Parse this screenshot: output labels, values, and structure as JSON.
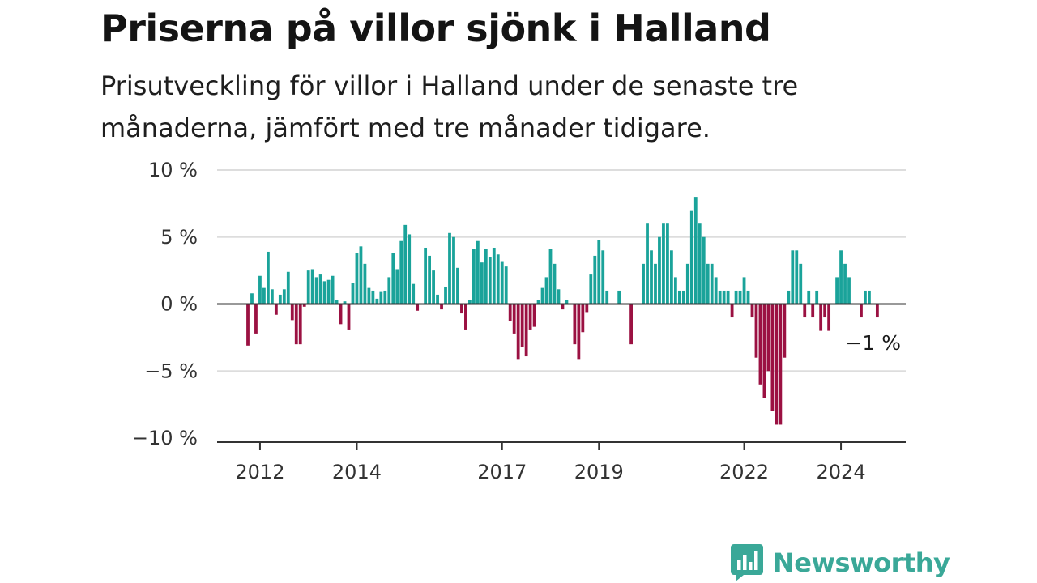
{
  "title": "Priserna på villor sjönk i Halland",
  "subtitle": "Prisutveckling för villor i Halland under de senaste tre månaderna, jämfört med tre månader tidigare.",
  "brand": {
    "name": "Newsworthy",
    "icon": "bar-chart-speech-bubble-icon",
    "color": "#3aa898"
  },
  "chart_data": {
    "type": "bar",
    "start": "2011-10",
    "frequency": "monthly",
    "ylim": [
      -10,
      10
    ],
    "yticks": [
      10,
      5,
      0,
      -5,
      -10
    ],
    "ytick_labels": [
      "10 %",
      "5 %",
      "0 %",
      "−5 %",
      "−10 %"
    ],
    "xticks": [
      "2012-01",
      "2014-01",
      "2017-01",
      "2019-01",
      "2022-01",
      "2024-01"
    ],
    "xtick_labels": [
      "2012",
      "2014",
      "2017",
      "2019",
      "2022",
      "2024"
    ],
    "last_label": "−1 %",
    "colors": {
      "positive": "#1aa39a",
      "negative": "#9b1142",
      "grid": "#dddddd",
      "axis": "#333333"
    },
    "values": [
      -3.1,
      0.8,
      -2.2,
      2.1,
      1.2,
      3.9,
      1.1,
      -0.8,
      0.7,
      1.1,
      2.4,
      -1.2,
      -3.0,
      -3.0,
      -0.2,
      2.5,
      2.6,
      2.0,
      2.2,
      1.7,
      1.8,
      2.1,
      0.3,
      -1.5,
      0.2,
      -1.9,
      1.6,
      3.8,
      4.3,
      3.0,
      1.2,
      1.0,
      0.4,
      0.9,
      1.0,
      2.0,
      3.8,
      2.6,
      4.7,
      5.9,
      5.2,
      1.5,
      -0.5,
      0.0,
      4.2,
      3.6,
      2.5,
      0.7,
      -0.4,
      1.3,
      5.3,
      5.0,
      2.7,
      -0.7,
      -1.9,
      0.3,
      4.1,
      4.7,
      3.1,
      4.1,
      3.5,
      4.2,
      3.7,
      3.2,
      2.8,
      -1.3,
      -2.2,
      -4.1,
      -3.2,
      -3.9,
      -1.9,
      -1.7,
      0.3,
      1.2,
      2.0,
      4.1,
      3.0,
      1.1,
      -0.4,
      0.3,
      0.0,
      -3.0,
      -4.1,
      -2.1,
      -0.6,
      2.2,
      3.6,
      4.8,
      4.0,
      1.0,
      0.0,
      0.0,
      1.0,
      0.0,
      0.0,
      -3.0,
      0.0,
      0.0,
      3.0,
      6.0,
      4.0,
      3.0,
      5.0,
      6.0,
      6.0,
      4.0,
      2.0,
      1.0,
      1.0,
      3.0,
      7.0,
      8.0,
      6.0,
      5.0,
      3.0,
      3.0,
      2.0,
      1.0,
      1.0,
      1.0,
      -1.0,
      1.0,
      1.0,
      2.0,
      1.0,
      -1.0,
      -4.0,
      -6.0,
      -7.0,
      -5.0,
      -8.0,
      -9.0,
      -9.0,
      -4.0,
      1.0,
      4.0,
      4.0,
      3.0,
      -1.0,
      1.0,
      -1.0,
      1.0,
      -2.0,
      -1.0,
      -2.0,
      0.0,
      2.0,
      4.0,
      3.0,
      2.0,
      0.0,
      0.0,
      -1.0,
      1.0,
      1.0,
      0.0,
      -1.0
    ]
  }
}
